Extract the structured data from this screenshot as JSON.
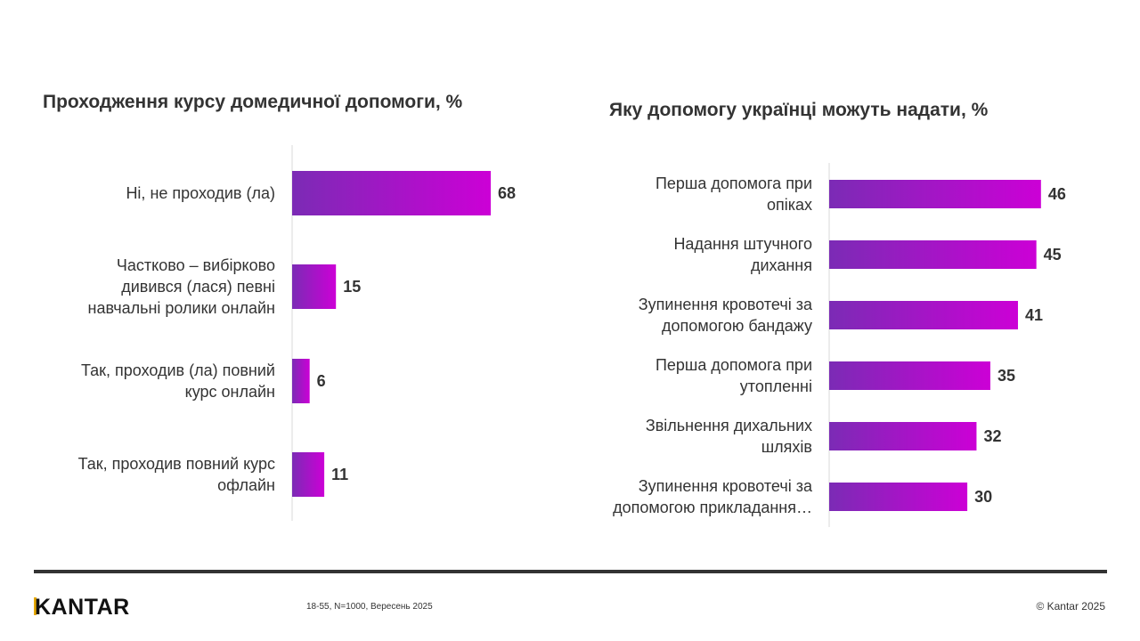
{
  "chart_data": [
    {
      "type": "bar",
      "orientation": "horizontal",
      "title": "Проходження курсу домедичної допомоги, %",
      "categories": [
        [
          "Ні, не проходив (ла)"
        ],
        [
          "Частково – вибірково",
          "дивився (лася) певні",
          "навчальні  ролики онлайн"
        ],
        [
          "Так, проходив (ла) повний",
          "курс онлайн"
        ],
        [
          "Так, проходив повний курс",
          "офлайн"
        ]
      ],
      "values": [
        68,
        15,
        6,
        11
      ],
      "xlim": [
        0,
        100
      ],
      "grid": false
    },
    {
      "type": "bar",
      "orientation": "horizontal",
      "title": "Яку допомогу українці можуть надати, %",
      "categories": [
        [
          "Перша допомога при",
          "опіках"
        ],
        [
          "Надання штучного",
          "дихання"
        ],
        [
          "Зупинення кровотечі за",
          "допомогою бандажу"
        ],
        [
          "Перша допомога при",
          "утопленні"
        ],
        [
          "Звільнення дихальних",
          "шляхів"
        ],
        [
          "Зупинення кровотечі за",
          "допомогою прикладання…"
        ]
      ],
      "values": [
        46,
        45,
        41,
        35,
        32,
        30
      ],
      "xlim": [
        0,
        100
      ],
      "grid": false
    }
  ],
  "colors": {
    "bar_start": "#7b2bb5",
    "bar_end": "#cc00d6",
    "text": "#333333"
  },
  "footer": {
    "logo": "KANTAR",
    "note": "18-55, N=1000, Вересень 2025",
    "copyright": "© Kantar 2025"
  }
}
